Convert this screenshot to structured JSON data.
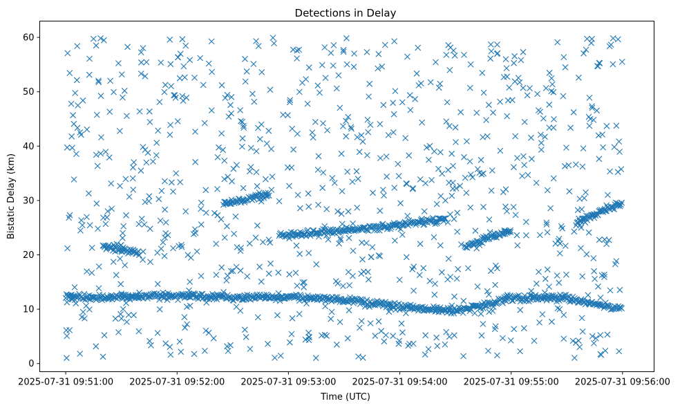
{
  "chart_data": {
    "type": "scatter",
    "title": "Detections in Delay",
    "xlabel": "Time (UTC)",
    "ylabel": "Bistatic Delay (km)",
    "x_ticks": [
      "2025-07-31 09:51:00",
      "2025-07-31 09:52:00",
      "2025-07-31 09:53:00",
      "2025-07-31 09:54:00",
      "2025-07-31 09:55:00",
      "2025-07-31 09:56:00"
    ],
    "y_ticks": [
      "0",
      "10",
      "20",
      "30",
      "40",
      "50",
      "60"
    ],
    "xlim": [
      "2025-07-31 09:50:46",
      "2025-07-31 09:56:17"
    ],
    "ylim": [
      -1.5,
      63
    ],
    "marker": "x",
    "marker_color": "#1f77b4",
    "grid": false,
    "tracks": [
      {
        "times": [
          "2025-07-31 09:51:00",
          "2025-07-31 09:51:30",
          "2025-07-31 09:52:00",
          "2025-07-31 09:52:30",
          "2025-07-31 09:53:00",
          "2025-07-31 09:53:30",
          "2025-07-31 09:54:00",
          "2025-07-31 09:54:30",
          "2025-07-31 09:55:00",
          "2025-07-31 09:55:30",
          "2025-07-31 09:56:00"
        ],
        "values": [
          12.3,
          12.2,
          12.4,
          12.2,
          12.3,
          11.7,
          10.5,
          9.6,
          12.0,
          12.1,
          10.0
        ]
      },
      {
        "times": [
          "2025-07-31 09:52:55",
          "2025-07-31 09:53:30",
          "2025-07-31 09:54:00",
          "2025-07-31 09:54:25"
        ],
        "values": [
          23.5,
          24.5,
          25.5,
          26.5
        ]
      },
      {
        "times": [
          "2025-07-31 09:52:25",
          "2025-07-31 09:52:50"
        ],
        "values": [
          29.5,
          31.0
        ]
      },
      {
        "times": [
          "2025-07-31 09:55:35",
          "2025-07-31 09:56:00"
        ],
        "values": [
          26.0,
          29.5
        ]
      },
      {
        "times": [
          "2025-07-31 09:51:20",
          "2025-07-31 09:51:40"
        ],
        "values": [
          21.5,
          20.5
        ]
      },
      {
        "times": [
          "2025-07-31 09:54:35",
          "2025-07-31 09:55:00"
        ],
        "values": [
          21.5,
          24.5
        ]
      }
    ],
    "clutter": {
      "time_range": [
        "2025-07-31 09:51:00",
        "2025-07-31 09:56:00"
      ],
      "value_range": [
        1,
        60
      ],
      "approx_count": 900
    }
  }
}
